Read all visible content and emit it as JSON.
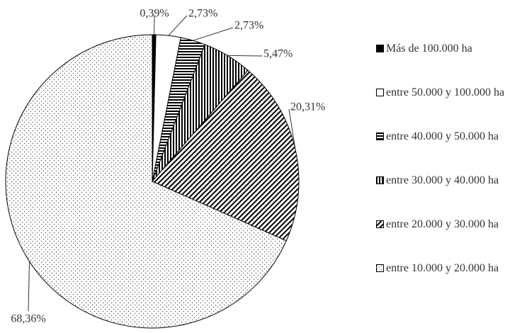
{
  "chart_data": {
    "type": "pie",
    "categories": [
      "Más de 100.000 ha",
      "entre 50.000 y 100.000 ha",
      "entre 40.000 y 50.000 ha",
      "entre 30.000 y 40.000 ha",
      "entre 20.000 y 30.000 ha",
      "entre 10.000 y 20.000 ha"
    ],
    "values": [
      0.39,
      2.73,
      2.73,
      5.47,
      20.31,
      68.36
    ],
    "value_labels": [
      "0,39%",
      "2,73%",
      "2,73%",
      "5,47%",
      "20,31%",
      "68,36%"
    ],
    "legend": "right"
  }
}
